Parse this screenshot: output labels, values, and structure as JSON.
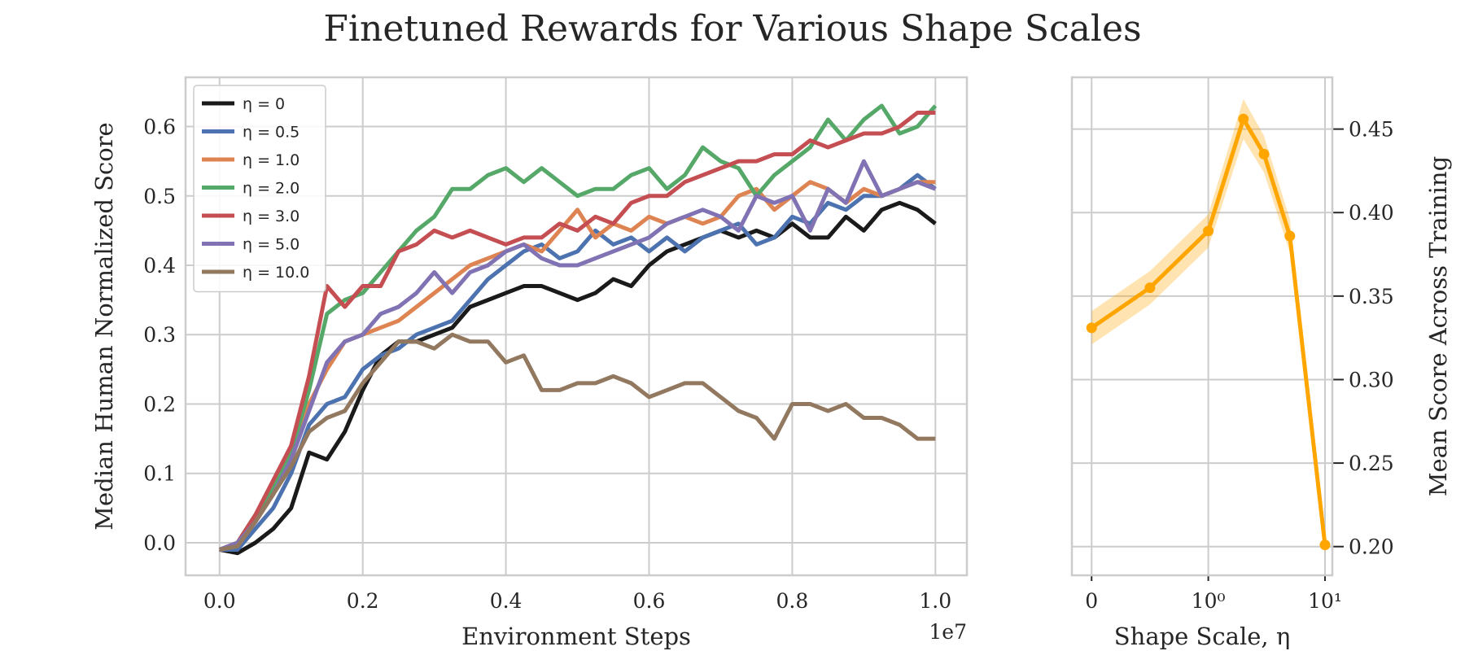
{
  "title": "Finetuned Rewards for Various Shape Scales",
  "chart_data": [
    {
      "type": "line",
      "xlabel": "Environment Steps",
      "ylabel": "Median Human Normalized Score",
      "x_scale_label": "1e7",
      "x": [
        0,
        0.025,
        0.05,
        0.075,
        0.1,
        0.125,
        0.15,
        0.175,
        0.2,
        0.225,
        0.25,
        0.275,
        0.3,
        0.325,
        0.35,
        0.375,
        0.4,
        0.425,
        0.45,
        0.475,
        0.5,
        0.525,
        0.55,
        0.575,
        0.6,
        0.625,
        0.65,
        0.675,
        0.7,
        0.725,
        0.75,
        0.775,
        0.8,
        0.825,
        0.85,
        0.875,
        0.9,
        0.925,
        0.95,
        0.975,
        1.0
      ],
      "series": [
        {
          "name": "η = 0",
          "color": "#1a1a1a",
          "values": [
            -0.01,
            -0.015,
            0.0,
            0.02,
            0.05,
            0.13,
            0.12,
            0.16,
            0.22,
            0.27,
            0.29,
            0.29,
            0.3,
            0.31,
            0.34,
            0.35,
            0.36,
            0.37,
            0.37,
            0.36,
            0.35,
            0.36,
            0.38,
            0.37,
            0.4,
            0.42,
            0.43,
            0.44,
            0.45,
            0.44,
            0.45,
            0.44,
            0.46,
            0.44,
            0.44,
            0.47,
            0.45,
            0.48,
            0.49,
            0.48,
            0.46
          ]
        },
        {
          "name": "η = 0.5",
          "color": "#4c72b0",
          "values": [
            -0.01,
            -0.01,
            0.02,
            0.05,
            0.1,
            0.17,
            0.2,
            0.21,
            0.25,
            0.27,
            0.28,
            0.3,
            0.31,
            0.32,
            0.35,
            0.38,
            0.4,
            0.42,
            0.43,
            0.41,
            0.42,
            0.45,
            0.43,
            0.44,
            0.42,
            0.44,
            0.42,
            0.44,
            0.45,
            0.46,
            0.43,
            0.44,
            0.47,
            0.46,
            0.49,
            0.48,
            0.5,
            0.5,
            0.51,
            0.53,
            0.51
          ]
        },
        {
          "name": "η = 1.0",
          "color": "#dd8452",
          "values": [
            -0.01,
            -0.005,
            0.03,
            0.07,
            0.12,
            0.2,
            0.25,
            0.29,
            0.3,
            0.31,
            0.32,
            0.34,
            0.36,
            0.38,
            0.4,
            0.41,
            0.42,
            0.43,
            0.42,
            0.45,
            0.48,
            0.44,
            0.46,
            0.45,
            0.47,
            0.46,
            0.47,
            0.46,
            0.47,
            0.5,
            0.51,
            0.48,
            0.5,
            0.52,
            0.51,
            0.49,
            0.51,
            0.5,
            0.51,
            0.52,
            0.52
          ]
        },
        {
          "name": "η = 2.0",
          "color": "#55a868",
          "values": [
            -0.01,
            0.0,
            0.04,
            0.08,
            0.13,
            0.22,
            0.33,
            0.35,
            0.36,
            0.39,
            0.42,
            0.45,
            0.47,
            0.51,
            0.51,
            0.53,
            0.54,
            0.52,
            0.54,
            0.52,
            0.5,
            0.51,
            0.51,
            0.53,
            0.54,
            0.51,
            0.53,
            0.57,
            0.55,
            0.54,
            0.5,
            0.53,
            0.55,
            0.57,
            0.61,
            0.58,
            0.61,
            0.63,
            0.59,
            0.6,
            0.63
          ]
        },
        {
          "name": "η = 3.0",
          "color": "#c44e52",
          "values": [
            -0.01,
            0.0,
            0.04,
            0.09,
            0.14,
            0.24,
            0.37,
            0.34,
            0.37,
            0.37,
            0.42,
            0.43,
            0.45,
            0.44,
            0.45,
            0.44,
            0.43,
            0.44,
            0.44,
            0.46,
            0.45,
            0.47,
            0.46,
            0.49,
            0.5,
            0.5,
            0.52,
            0.53,
            0.54,
            0.55,
            0.55,
            0.56,
            0.56,
            0.58,
            0.57,
            0.58,
            0.59,
            0.59,
            0.6,
            0.62,
            0.62
          ]
        },
        {
          "name": "η = 5.0",
          "color": "#8172b3",
          "values": [
            -0.01,
            0.0,
            0.03,
            0.07,
            0.12,
            0.19,
            0.26,
            0.29,
            0.3,
            0.33,
            0.34,
            0.36,
            0.39,
            0.36,
            0.39,
            0.4,
            0.42,
            0.43,
            0.41,
            0.4,
            0.4,
            0.41,
            0.42,
            0.43,
            0.44,
            0.46,
            0.47,
            0.48,
            0.47,
            0.45,
            0.5,
            0.49,
            0.5,
            0.45,
            0.51,
            0.49,
            0.55,
            0.5,
            0.51,
            0.52,
            0.51
          ]
        },
        {
          "name": "η = 10.0",
          "color": "#937860",
          "values": [
            -0.01,
            -0.005,
            0.03,
            0.07,
            0.11,
            0.16,
            0.18,
            0.19,
            0.23,
            0.26,
            0.29,
            0.29,
            0.28,
            0.3,
            0.29,
            0.29,
            0.26,
            0.27,
            0.22,
            0.22,
            0.23,
            0.23,
            0.24,
            0.23,
            0.21,
            0.22,
            0.23,
            0.23,
            0.21,
            0.19,
            0.18,
            0.15,
            0.2,
            0.2,
            0.19,
            0.2,
            0.18,
            0.18,
            0.17,
            0.15,
            0.15
          ]
        }
      ],
      "xlim": [
        -0.0475,
        1.044
      ],
      "ylim": [
        -0.047,
        0.671
      ],
      "xticks": [
        {
          "value": 0,
          "label": "0.0"
        },
        0.2,
        0.4,
        0.6,
        0.8,
        {
          "value": 1,
          "label": "1.0"
        }
      ],
      "yticks": [
        {
          "value": 0,
          "label": "0.0"
        },
        0.1,
        0.2,
        0.3,
        0.4,
        0.5,
        0.6
      ],
      "grid": true,
      "legend": "upper left"
    },
    {
      "type": "line",
      "xlabel": "Shape Scale, η",
      "ylabel": "Mean Score Across Training",
      "x": [
        0,
        0.5,
        1,
        2,
        3,
        5,
        10
      ],
      "values": [
        0.331,
        0.355,
        0.389,
        0.456,
        0.435,
        0.386,
        0.201
      ],
      "errors": [
        0.01,
        0.01,
        0.01,
        0.012,
        0.011,
        0.01,
        0.005
      ],
      "color": "#ffa500",
      "xscale": "symlog",
      "yaxis_side": "right",
      "xlim": [
        -0.169,
        11.56
      ],
      "ylim": [
        0.1828,
        0.481
      ],
      "xticks": [
        0,
        {
          "value": 1,
          "label": "10⁰"
        },
        {
          "value": 10,
          "label": "10¹"
        }
      ],
      "yticks": [
        {
          "value": 0.2,
          "label": "0.20"
        },
        0.25,
        {
          "value": 0.3,
          "label": "0.30"
        },
        0.35,
        {
          "value": 0.4,
          "label": "0.40"
        },
        0.45
      ],
      "grid": true
    }
  ]
}
